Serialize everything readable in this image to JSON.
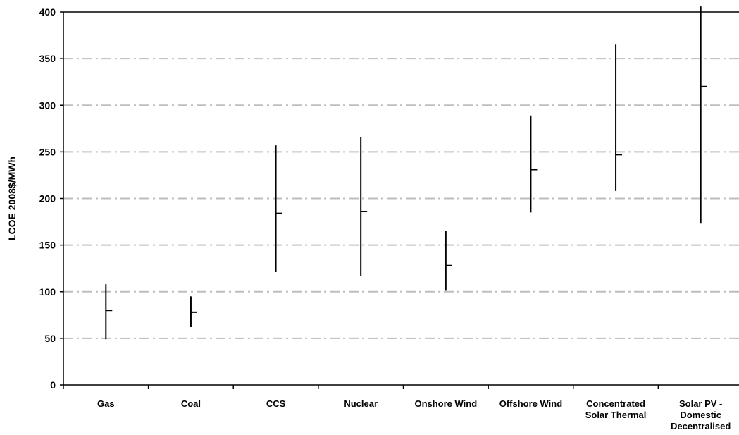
{
  "chart_data": {
    "type": "high-low-close",
    "title": "",
    "xlabel": "",
    "ylabel": "LCOE 2008$/MWh",
    "ylim": [
      0,
      400
    ],
    "yticks": [
      0,
      50,
      100,
      150,
      200,
      250,
      300,
      350,
      400
    ],
    "grid": "horizontal dash-dot",
    "categories": [
      [
        "Gas"
      ],
      [
        "Coal"
      ],
      [
        "CCS"
      ],
      [
        "Nuclear"
      ],
      [
        "Onshore Wind"
      ],
      [
        "Offshore Wind"
      ],
      [
        "Concentrated",
        "Solar Thermal"
      ],
      [
        "Solar PV -",
        "Domestic",
        "Decentralised"
      ]
    ],
    "series": [
      {
        "name": "High",
        "values": [
          108,
          95,
          257,
          266,
          165,
          289,
          365,
          406
        ]
      },
      {
        "name": "Low",
        "values": [
          49,
          62,
          121,
          117,
          101,
          185,
          208,
          173
        ]
      },
      {
        "name": "Central",
        "values": [
          80,
          78,
          184,
          186,
          128,
          231,
          247,
          320
        ]
      }
    ]
  }
}
